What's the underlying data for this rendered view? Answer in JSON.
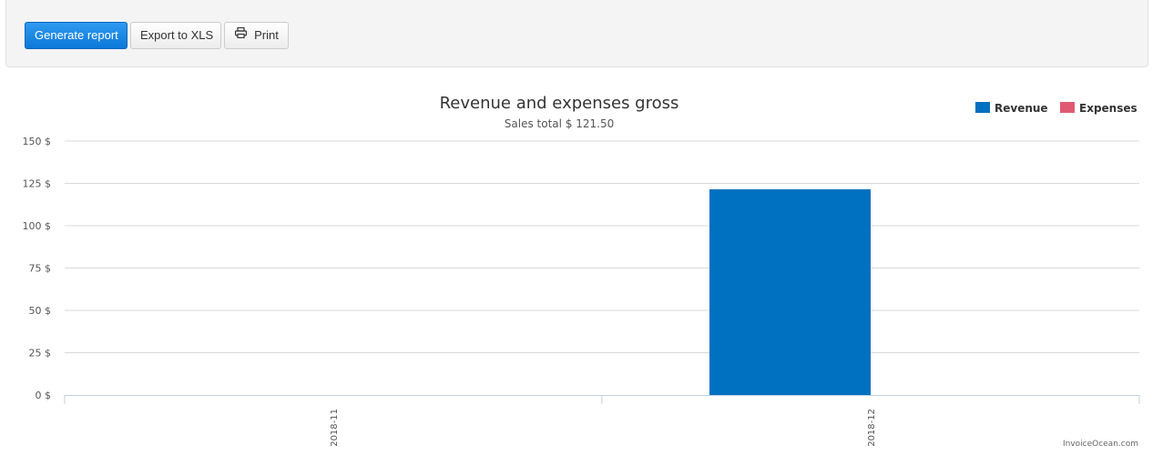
{
  "toolbar": {
    "generate_label": "Generate report",
    "export_label": "Export to XLS",
    "print_label": "Print",
    "print_icon": "printer-icon"
  },
  "colors": {
    "primary_button": "#1682e2",
    "revenue": "#0070c0",
    "expenses": "#e05a73",
    "grid": "#d8d8d8",
    "axis_text": "#555555"
  },
  "chart_data": {
    "type": "bar",
    "title": "Revenue and expenses gross",
    "subtitle": "Sales total $ 121.50",
    "categories": [
      "2018-11",
      "2018-12"
    ],
    "series": [
      {
        "name": "Revenue",
        "values": [
          0,
          121.5
        ]
      },
      {
        "name": "Expenses",
        "values": [
          0,
          0
        ]
      }
    ],
    "ylim": [
      0,
      150
    ],
    "yticks": [
      0,
      25,
      50,
      75,
      100,
      125,
      150
    ],
    "ytick_suffix": " $",
    "grid": true,
    "legend_position": "top-right",
    "credit": "InvoiceOcean.com"
  }
}
